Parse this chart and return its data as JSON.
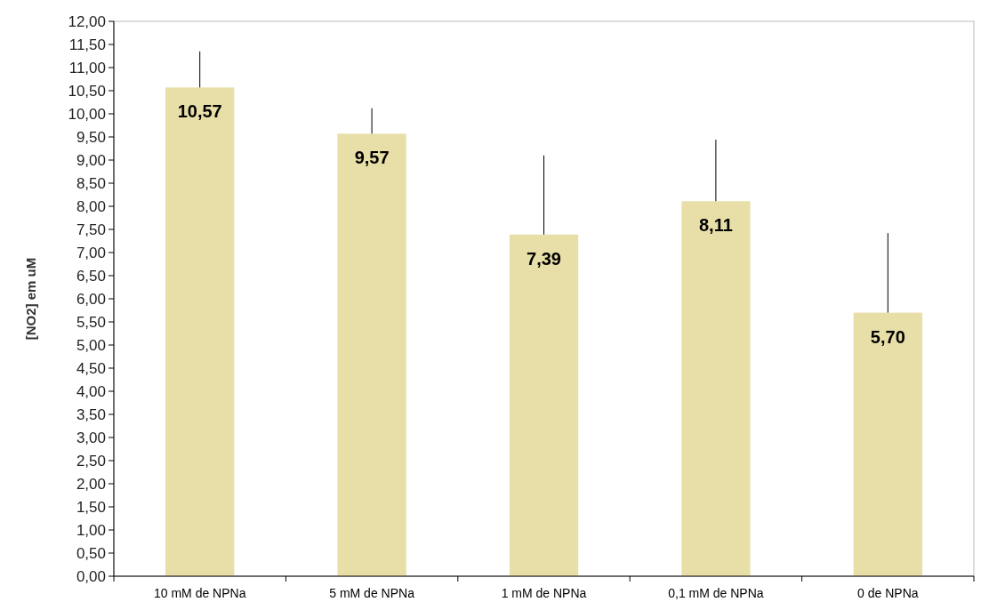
{
  "chart_data": {
    "type": "bar",
    "ylabel": "[NO2] em uM",
    "categories": [
      "10 mM de NPNa",
      "5 mM de NPNa",
      "1 mM de NPNa",
      "0,1 mM de NPNa",
      "0 de NPNa"
    ],
    "values": [
      10.57,
      9.57,
      7.39,
      8.11,
      5.7
    ],
    "value_labels": [
      "10,57",
      "9,57",
      "7,39",
      "8,11",
      "5,70"
    ],
    "errors": [
      [
        10.57,
        11.35
      ],
      [
        9.57,
        10.12
      ],
      [
        7.39,
        9.1
      ],
      [
        8.11,
        9.44
      ],
      [
        5.7,
        7.42
      ]
    ],
    "color": "#e8dfa8",
    "ylim": [
      0,
      12
    ],
    "yticks": [
      {
        "value": 0,
        "label": "0,00"
      },
      {
        "value": 0.5,
        "label": "0,50"
      },
      {
        "value": 1,
        "label": "1,00"
      },
      {
        "value": 1.5,
        "label": "1,50"
      },
      {
        "value": 2,
        "label": "2,00"
      },
      {
        "value": 2.5,
        "label": "2,50"
      },
      {
        "value": 3,
        "label": "3,00"
      },
      {
        "value": 3.5,
        "label": "3,50"
      },
      {
        "value": 4,
        "label": "4,00"
      },
      {
        "value": 4.5,
        "label": "4,50"
      },
      {
        "value": 5,
        "label": "5,00"
      },
      {
        "value": 5.5,
        "label": "5,50"
      },
      {
        "value": 6,
        "label": "6,00"
      },
      {
        "value": 6.5,
        "label": "6,50"
      },
      {
        "value": 7,
        "label": "7,00"
      },
      {
        "value": 7.5,
        "label": "7,50"
      },
      {
        "value": 8,
        "label": "8,00"
      },
      {
        "value": 8.5,
        "label": "8,50"
      },
      {
        "value": 9,
        "label": "9,00"
      },
      {
        "value": 9.5,
        "label": "9,50"
      },
      {
        "value": 10,
        "label": "10,00"
      },
      {
        "value": 10.5,
        "label": "10,50"
      },
      {
        "value": 11,
        "label": "11,00"
      },
      {
        "value": 11.5,
        "label": "11,50"
      },
      {
        "value": 12,
        "label": "12,00"
      }
    ],
    "grid": false
  }
}
